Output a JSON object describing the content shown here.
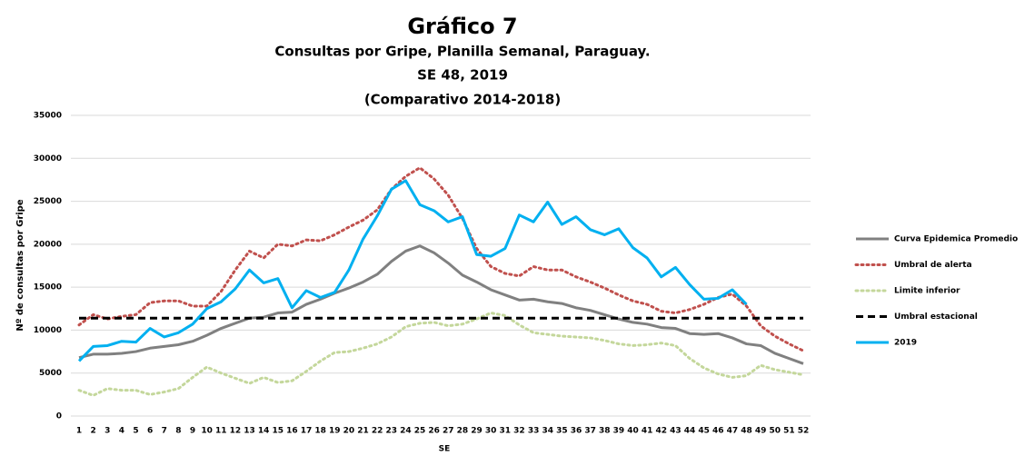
{
  "chart_data": {
    "type": "line",
    "title": "Gráfico 7",
    "subtitle": [
      "Consultas por Gripe, Planilla Semanal, Paraguay.",
      "SE 48, 2019",
      "(Comparativo 2014-2018)"
    ],
    "x_label": "SE",
    "y_label": "Nº de consultas por Gripe",
    "categories": [
      "1",
      "2",
      "3",
      "4",
      "5",
      "6",
      "7",
      "8",
      "9",
      "10",
      "11",
      "12",
      "13",
      "14",
      "15",
      "16",
      "17",
      "18",
      "19",
      "20",
      "21",
      "22",
      "23",
      "24",
      "25",
      "26",
      "27",
      "28",
      "29",
      "30",
      "31",
      "32",
      "33",
      "34",
      "35",
      "36",
      "37",
      "38",
      "39",
      "40",
      "41",
      "42",
      "43",
      "44",
      "45",
      "46",
      "47",
      "48",
      "49",
      "50",
      "51",
      "52"
    ],
    "ylim": [
      0,
      35000
    ],
    "yticks": [
      0,
      5000,
      10000,
      15000,
      20000,
      25000,
      30000,
      35000
    ],
    "grid": true,
    "legend": "right",
    "series": [
      {
        "name": "Curva Epidemica Promedio",
        "color": "#808080",
        "dash": "solid",
        "values": [
          6800,
          7200,
          7200,
          7300,
          7500,
          7900,
          8100,
          8300,
          8700,
          9400,
          10200,
          10800,
          11400,
          11500,
          12000,
          12100,
          13000,
          13600,
          14300,
          14900,
          15600,
          16500,
          18000,
          19200,
          19800,
          19000,
          17800,
          16400,
          15600,
          14700,
          14100,
          13500,
          13600,
          13300,
          13100,
          12600,
          12300,
          11800,
          11300,
          10900,
          10700,
          10300,
          10200,
          9600,
          9500,
          9600,
          9100,
          8400,
          8200,
          7300,
          6700,
          6100
        ]
      },
      {
        "name": "Umbral de alerta",
        "color": "#c0504d",
        "dash": "dotted",
        "values": [
          10600,
          11800,
          11300,
          11600,
          11800,
          13200,
          13400,
          13400,
          12800,
          12800,
          14500,
          17000,
          19200,
          18400,
          20000,
          19800,
          20500,
          20400,
          21100,
          22000,
          22800,
          24000,
          26400,
          27900,
          28900,
          27600,
          25700,
          23000,
          19500,
          17400,
          16600,
          16300,
          17400,
          17000,
          17000,
          16200,
          15600,
          14900,
          14100,
          13400,
          13000,
          12200,
          12000,
          12400,
          13000,
          13800,
          14200,
          12800,
          10500,
          9300,
          8400,
          7600
        ]
      },
      {
        "name": "Limite inferior",
        "color": "#c4d79b",
        "dash": "dotted",
        "values": [
          3000,
          2400,
          3200,
          3000,
          3000,
          2500,
          2800,
          3200,
          4500,
          5700,
          5000,
          4400,
          3800,
          4500,
          3900,
          4100,
          5200,
          6400,
          7400,
          7500,
          7900,
          8400,
          9200,
          10400,
          10800,
          10900,
          10500,
          10700,
          11300,
          12000,
          11700,
          10600,
          9700,
          9500,
          9300,
          9200,
          9100,
          8800,
          8400,
          8200,
          8300,
          8500,
          8200,
          6700,
          5600,
          4900,
          4500,
          4700,
          5900,
          5400,
          5100,
          4800
        ]
      },
      {
        "name": "Umbral estacional",
        "color": "#000000",
        "dash": "dashed",
        "values": [
          11400,
          11400,
          11400,
          11400,
          11400,
          11400,
          11400,
          11400,
          11400,
          11400,
          11400,
          11400,
          11400,
          11400,
          11400,
          11400,
          11400,
          11400,
          11400,
          11400,
          11400,
          11400,
          11400,
          11400,
          11400,
          11400,
          11400,
          11400,
          11400,
          11400,
          11400,
          11400,
          11400,
          11400,
          11400,
          11400,
          11400,
          11400,
          11400,
          11400,
          11400,
          11400,
          11400,
          11400,
          11400,
          11400,
          11400,
          11400,
          11400,
          11400,
          11400,
          11400
        ]
      },
      {
        "name": "2019",
        "color": "#00b0f0",
        "dash": "solid",
        "values": [
          6400,
          8100,
          8200,
          8700,
          8600,
          10200,
          9200,
          9700,
          10700,
          12500,
          13300,
          14800,
          17000,
          15500,
          16000,
          12600,
          14600,
          13800,
          14400,
          17000,
          20600,
          23300,
          26400,
          27400,
          24600,
          23900,
          22600,
          23200,
          18800,
          18600,
          19500,
          23400,
          22600,
          24900,
          22300,
          23200,
          21700,
          21100,
          21800,
          19600,
          18400,
          16200,
          17300,
          15300,
          13600,
          13700,
          14700,
          13000,
          null,
          null,
          null,
          null
        ]
      }
    ]
  }
}
